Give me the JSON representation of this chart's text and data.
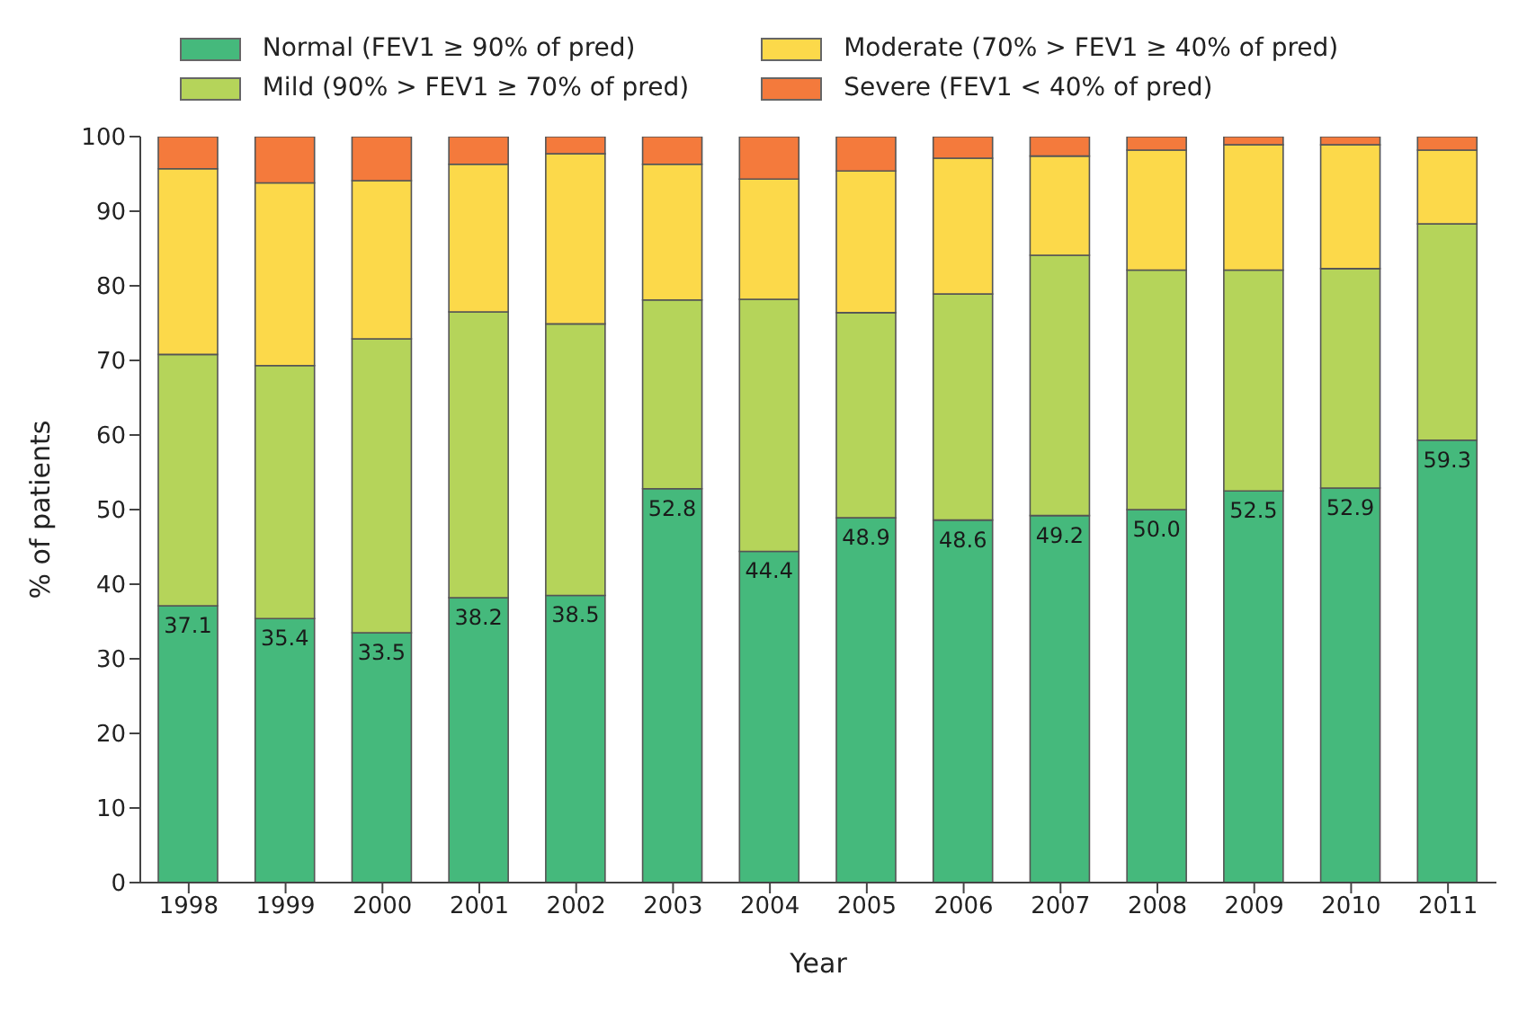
{
  "chart_data": {
    "type": "bar",
    "stacked": true,
    "xlabel": "Year",
    "ylabel": "% of patients",
    "categories": [
      "1998",
      "1999",
      "2000",
      "2001",
      "2002",
      "2003",
      "2004",
      "2005",
      "2006",
      "2007",
      "2008",
      "2009",
      "2010",
      "2011"
    ],
    "series": [
      {
        "name": "Normal (FEV1 ≥ 90% of pred)",
        "color": "#45b97c",
        "values": [
          37.1,
          35.4,
          33.5,
          38.2,
          38.5,
          52.8,
          44.4,
          48.9,
          48.6,
          49.2,
          50.0,
          52.5,
          52.9,
          59.3
        ],
        "value_labels": [
          "37.1",
          "35.4",
          "33.5",
          "38.2",
          "38.5",
          "52.8",
          "44.4",
          "48.9",
          "48.6",
          "49.2",
          "50.0",
          "52.5",
          "52.9",
          "59.3"
        ]
      },
      {
        "name": "Mild (90% > FEV1 ≥ 70% of pred)",
        "color": "#b5d45a",
        "values": [
          33.7,
          33.9,
          39.4,
          38.3,
          36.4,
          25.3,
          33.8,
          27.5,
          30.3,
          34.9,
          32.1,
          29.6,
          29.4,
          29.0
        ]
      },
      {
        "name": "Moderate (70% > FEV1 ≥ 40% of pred)",
        "color": "#fcd94a",
        "values": [
          24.9,
          24.5,
          21.2,
          19.8,
          22.8,
          18.2,
          16.1,
          19.0,
          18.2,
          13.3,
          16.1,
          16.8,
          16.6,
          9.9
        ]
      },
      {
        "name": "Severe (FEV1 < 40% of pred)",
        "color": "#f47a3c",
        "values": [
          4.3,
          6.2,
          5.9,
          3.7,
          2.3,
          3.7,
          5.7,
          4.6,
          2.9,
          2.6,
          1.8,
          1.1,
          1.1,
          1.8
        ]
      }
    ],
    "ylim": [
      0,
      100
    ],
    "yticks": [
      0,
      10,
      20,
      30,
      40,
      50,
      60,
      70,
      80,
      90,
      100
    ],
    "legend": "top"
  }
}
